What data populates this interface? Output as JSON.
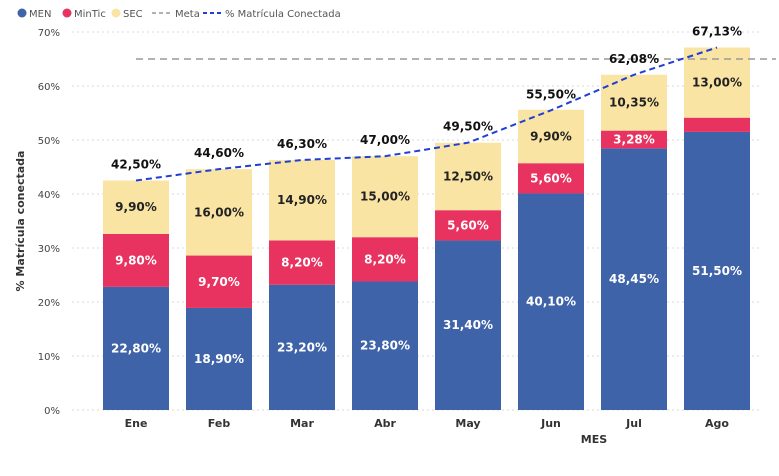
{
  "chart_data": {
    "type": "bar",
    "stacked": true,
    "categories": [
      "Ene",
      "Feb",
      "Mar",
      "Abr",
      "May",
      "Jun",
      "Jul",
      "Ago"
    ],
    "series": [
      {
        "name": "MEN",
        "values": [
          22.8,
          18.9,
          23.2,
          23.8,
          31.4,
          40.1,
          48.45,
          51.5
        ],
        "labels": [
          "22,80%",
          "18,90%",
          "23,20%",
          "23,80%",
          "31,40%",
          "40,10%",
          "48,45%",
          "51,50%"
        ],
        "color": "#3F63A9"
      },
      {
        "name": "MinTic",
        "values": [
          9.8,
          9.7,
          8.2,
          8.2,
          5.6,
          5.6,
          3.28,
          2.63
        ],
        "labels": [
          "9,80%",
          "9,70%",
          "8,20%",
          "8,20%",
          "5,60%",
          "5,60%",
          "3,28%",
          ""
        ],
        "color": "#E8325F"
      },
      {
        "name": "SEC",
        "values": [
          9.9,
          16.0,
          14.9,
          15.0,
          12.5,
          9.9,
          10.35,
          13.0
        ],
        "labels": [
          "9,90%",
          "16,00%",
          "14,90%",
          "15,00%",
          "12,50%",
          "9,90%",
          "10,35%",
          "13,00%"
        ],
        "color": "#F9E4A3"
      }
    ],
    "totals": {
      "values": [
        42.5,
        44.6,
        46.3,
        47.0,
        49.5,
        55.5,
        62.08,
        67.13
      ],
      "labels": [
        "42,50%",
        "44,60%",
        "46,30%",
        "47,00%",
        "49,50%",
        "55,50%",
        "62,08%",
        "67,13%"
      ]
    },
    "line_series": {
      "name": "% Matrícula Conectada",
      "values": [
        42.5,
        44.6,
        46.3,
        47.0,
        49.5,
        55.5,
        62.08,
        67.13
      ],
      "color": "#1F3FD6",
      "style": "dashed"
    },
    "reference_line": {
      "name": "Meta",
      "value": 65,
      "color": "#999999",
      "style": "dashed"
    },
    "ylim": [
      0,
      70
    ],
    "yticks": [
      0,
      10,
      20,
      30,
      40,
      50,
      60,
      70
    ],
    "ytick_labels": [
      "0%",
      "10%",
      "20%",
      "30%",
      "40%",
      "50%",
      "60%",
      "70%"
    ],
    "xlabel": "MES",
    "ylabel": "% Matrícula conectada",
    "legend": {
      "position": "top-left",
      "items": [
        "MEN",
        "MinTic",
        "SEC",
        "Meta",
        "% Matrícula Conectada"
      ]
    },
    "grid": true
  }
}
